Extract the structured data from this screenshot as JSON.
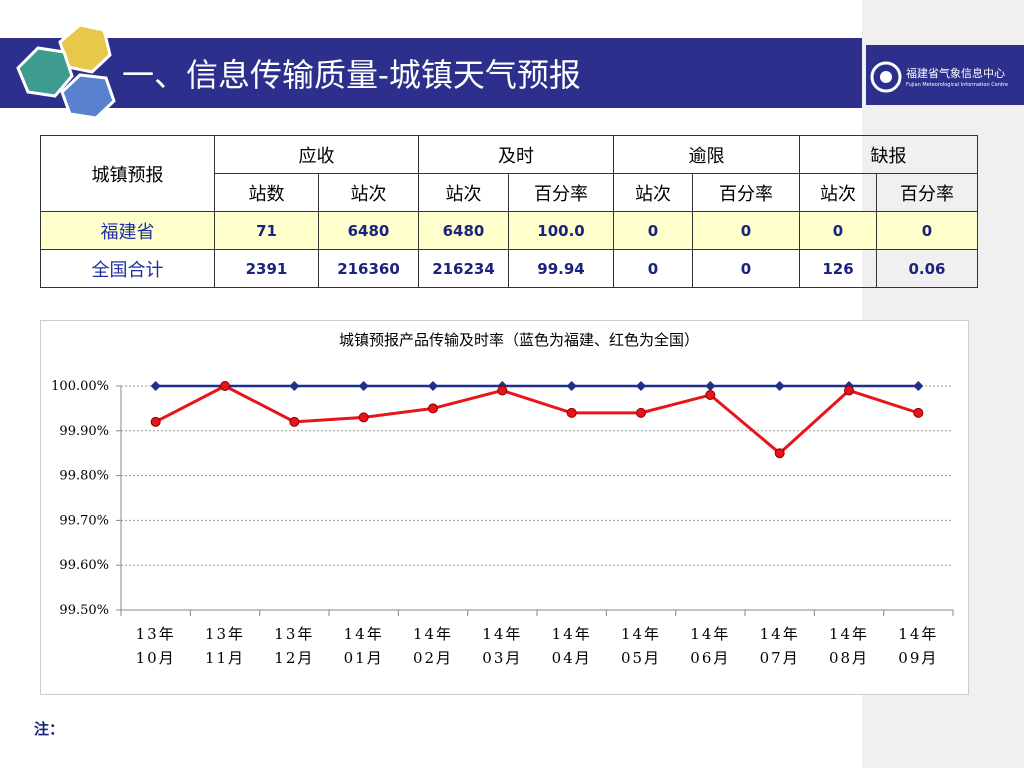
{
  "header": {
    "title": "一、信息传输质量-城镇天气预报",
    "logo_name": "福建省气象信息中心",
    "logo_sub": "Fujian Meteorological Information Centre"
  },
  "table": {
    "header": [
      [
        "城镇预报",
        "应收",
        "及时",
        "逾限",
        "缺报"
      ],
      [
        "站数",
        "站次",
        "站次",
        "百分率",
        "站次",
        "百分率",
        "站次",
        "百分率"
      ]
    ],
    "rows": [
      [
        "福建省",
        "71",
        "6480",
        "6480",
        "100.0",
        "0",
        "0",
        "0",
        "0"
      ],
      [
        "全国合计",
        "2391",
        "216360",
        "216234",
        "99.94",
        "0",
        "0",
        "126",
        "0.06"
      ]
    ]
  },
  "chart_data": {
    "type": "line",
    "title": "城镇预报产品传输及时率（蓝色为福建、红色为全国）",
    "categories": [
      "13年\n10月",
      "13年\n11月",
      "13年\n12月",
      "14年\n01月",
      "14年\n02月",
      "14年\n03月",
      "14年\n04月",
      "14年\n05月",
      "14年\n06月",
      "14年\n07月",
      "14年\n08月",
      "14年\n09月"
    ],
    "series": [
      {
        "color": "#1f2f8a",
        "values": [
          100,
          100,
          100,
          100,
          100,
          100,
          100,
          100,
          100,
          100,
          100,
          100
        ]
      },
      {
        "color": "#e8141a",
        "values": [
          99.92,
          100,
          99.92,
          99.93,
          99.95,
          99.99,
          99.94,
          99.94,
          99.98,
          99.85,
          99.99,
          99.94
        ]
      }
    ],
    "ylim": [
      99.5,
      100
    ],
    "yticks": [
      {
        "value": 99.5,
        "label": "99.50%"
      },
      {
        "value": 99.6,
        "label": "99.60%"
      },
      {
        "value": 99.7,
        "label": "99.70%"
      },
      {
        "value": 99.8,
        "label": "99.80%"
      },
      {
        "value": 99.9,
        "label": "99.90%"
      },
      {
        "value": 100,
        "label": "100.00%"
      }
    ],
    "grid": true
  },
  "note": "注："
}
